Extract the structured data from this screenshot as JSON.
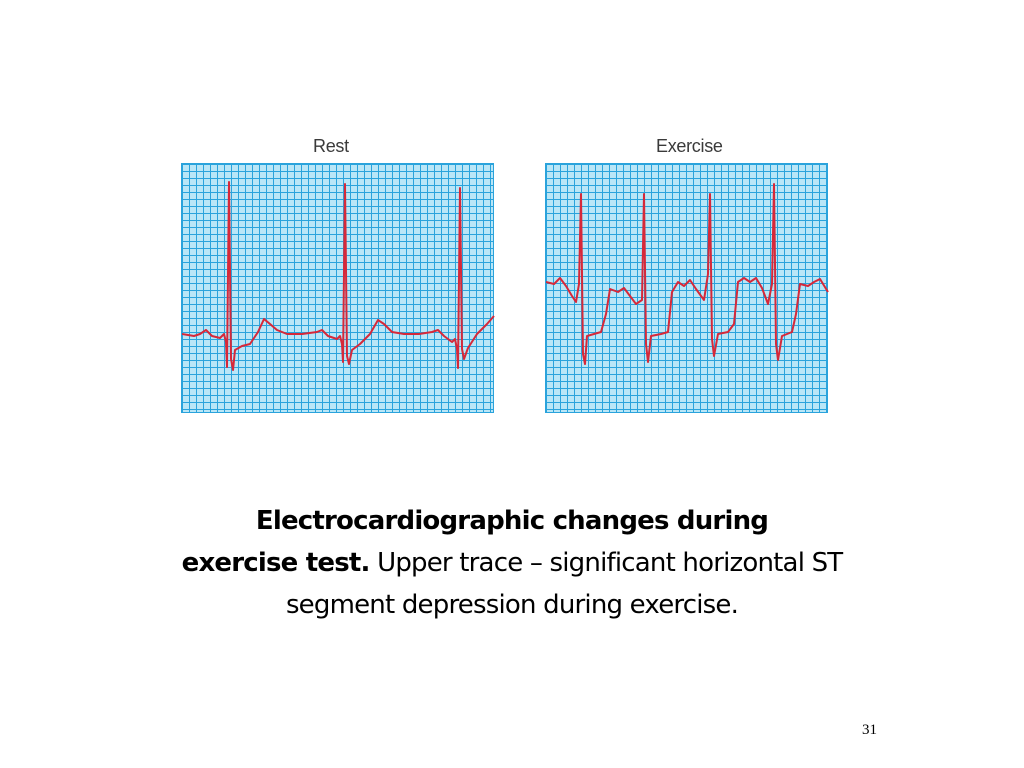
{
  "figure": {
    "rest_label": "Rest",
    "exercise_label": "Exercise",
    "trace_color": "#d62839",
    "grid_color": "#2aa3dc",
    "grid_bg": "#b9e6f7"
  },
  "caption": {
    "bold_line1": "Electrocardiographic changes during",
    "bold_line2": "exercise test.",
    "normal_text": " Upper trace – significant horizontal ST",
    "line3": "segment depression during exercise."
  },
  "slide": {
    "page_number": "31"
  }
}
